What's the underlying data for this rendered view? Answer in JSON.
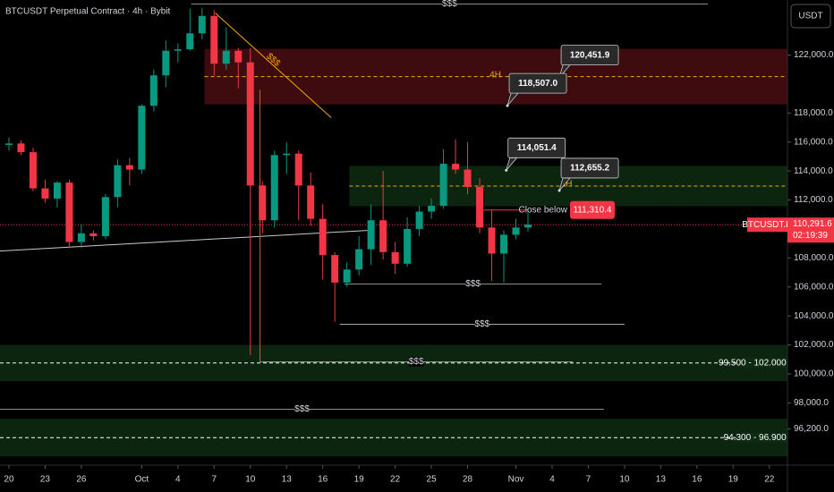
{
  "chart_data": {
    "type": "candlestick",
    "title": "BTCUSDT Perpetual Contract · 4h · Bybit",
    "currency": "USDT",
    "symbol": "BTCUSDT.P",
    "last_price": {
      "value": 110291.6,
      "label": "110,291.6"
    },
    "countdown": "02:19:39",
    "up_color": "#089981",
    "down_color": "#f23645",
    "x": [
      0,
      1,
      2,
      3,
      4,
      5,
      6,
      7,
      8,
      9,
      10,
      11,
      12,
      13,
      14,
      15,
      16,
      17,
      18,
      19,
      20,
      21,
      22,
      23,
      24,
      25,
      26,
      27,
      28,
      29,
      30,
      31,
      32,
      33,
      34,
      35,
      36,
      37,
      38,
      39,
      40,
      41,
      42,
      43
    ],
    "open": [
      115800,
      115900,
      115300,
      112800,
      112100,
      113200,
      109100,
      109700,
      109500,
      112200,
      114400,
      114100,
      118500,
      120600,
      122300,
      122400,
      123500,
      124700,
      121400,
      122300,
      121500,
      113000,
      110600,
      115100,
      115200,
      113000,
      110700,
      108200,
      106300,
      107200,
      108600,
      110600,
      108400,
      107600,
      110000,
      111200,
      111600,
      114500,
      114100,
      112900,
      110100,
      108300,
      109600,
      110100
    ],
    "high": [
      116300,
      116100,
      115600,
      113400,
      113300,
      113400,
      110300,
      109900,
      112400,
      114800,
      114900,
      118600,
      121000,
      123000,
      122800,
      125200,
      125250,
      125100,
      123900,
      122500,
      122500,
      113300,
      115400,
      116000,
      115400,
      113900,
      111700,
      108400,
      107700,
      109500,
      111700,
      114000,
      109100,
      110800,
      111600,
      112100,
      115500,
      116200,
      116000,
      113500,
      111300,
      109900,
      110700,
      111200
    ],
    "low": [
      115400,
      115100,
      112600,
      111800,
      111500,
      108700,
      108700,
      109200,
      109300,
      111500,
      113000,
      113800,
      118100,
      119800,
      121500,
      122300,
      123100,
      120600,
      121000,
      119700,
      101300,
      109700,
      110100,
      113800,
      110600,
      110200,
      106500,
      103600,
      106000,
      106800,
      107500,
      107900,
      106900,
      107400,
      109500,
      110700,
      111400,
      113800,
      112400,
      109700,
      106400,
      106300,
      109300,
      109800
    ],
    "close": [
      115900,
      115300,
      112800,
      112100,
      113200,
      109100,
      109700,
      109500,
      112200,
      114400,
      114100,
      118500,
      120600,
      122300,
      122400,
      123500,
      124700,
      121400,
      122300,
      121500,
      113000,
      110600,
      115100,
      115200,
      113000,
      110700,
      108200,
      106300,
      107200,
      108600,
      110600,
      108400,
      107600,
      110000,
      111200,
      111600,
      114500,
      114100,
      112900,
      110100,
      108300,
      109600,
      110100,
      110300
    ],
    "xlim": [
      -0.74,
      64.5
    ],
    "xticks": [
      {
        "value": 0,
        "label": "20"
      },
      {
        "value": 3,
        "label": "23"
      },
      {
        "value": 6,
        "label": "26"
      },
      {
        "value": 11,
        "label": "Oct"
      },
      {
        "value": 14,
        "label": "4"
      },
      {
        "value": 17,
        "label": "7"
      },
      {
        "value": 20,
        "label": "10"
      },
      {
        "value": 23,
        "label": "13"
      },
      {
        "value": 26,
        "label": "16"
      },
      {
        "value": 29,
        "label": "19"
      },
      {
        "value": 32,
        "label": "22"
      },
      {
        "value": 35,
        "label": "25"
      },
      {
        "value": 38,
        "label": "28"
      },
      {
        "value": 42,
        "label": "Nov"
      },
      {
        "value": 45,
        "label": "4"
      },
      {
        "value": 48,
        "label": "7"
      },
      {
        "value": 51,
        "label": "10"
      },
      {
        "value": 54,
        "label": "13"
      },
      {
        "value": 57,
        "label": "16"
      },
      {
        "value": 60,
        "label": "19"
      },
      {
        "value": 63,
        "label": "22"
      }
    ],
    "ylim": [
      93700,
      125800
    ],
    "yticks": [
      {
        "value": 122000,
        "label": "122,000.0"
      },
      {
        "value": 118000,
        "label": "118,000.0"
      },
      {
        "value": 116000,
        "label": "116,000.0"
      },
      {
        "value": 114000,
        "label": "114,000.0"
      },
      {
        "value": 112000,
        "label": "112,000.0"
      },
      {
        "value": 108000,
        "label": "108,000.0"
      },
      {
        "value": 106000,
        "label": "106,000.0"
      },
      {
        "value": 104000,
        "label": "104,000.0"
      },
      {
        "value": 102000,
        "label": "102,000.0"
      },
      {
        "value": 100000,
        "label": "100,000.0"
      },
      {
        "value": 98000,
        "label": "98,000.0"
      },
      {
        "value": 96200,
        "label": "96,200.0"
      }
    ],
    "zones": [
      {
        "low": 118600,
        "high": 122430,
        "from": 16.2,
        "color": "#b3202a",
        "line_color": "#f7a600",
        "label": "4H",
        "label_at": 40.3
      },
      {
        "low": 111570,
        "high": 114350,
        "from": 28.2,
        "color": "#1f6b2a",
        "line_color": "#f7a600",
        "label": "4H",
        "label_at": 46.2
      },
      {
        "low": 99500,
        "high": 102000,
        "from": -0.74,
        "color": "#1f6b2a",
        "line_color": "#ffffff",
        "label": "99.500 - 102.000",
        "label_at": 64.4
      },
      {
        "low": 94300,
        "high": 96900,
        "from": -0.74,
        "color": "#1f6b2a",
        "line_color": "#ffffff",
        "label": "94.300 - 96.900",
        "label_at": 64.4
      }
    ],
    "levels": [
      {
        "value": 125520,
        "from": 15.1,
        "to": 57.9,
        "label": "$$$"
      },
      {
        "value": 106200,
        "from": 27.8,
        "to": 49.1,
        "label": "$$$"
      },
      {
        "value": 103420,
        "from": 27.4,
        "to": 51.0,
        "label": "$$$"
      },
      {
        "value": 100830,
        "from": 20.8,
        "to": 46.7,
        "label": "$$$"
      },
      {
        "value": 97560,
        "from": -0.74,
        "to": 49.3,
        "label": "$$$"
      }
    ],
    "trendlines": [
      {
        "points": [
          [
            17.1,
            124900
          ],
          [
            26.7,
            117680
          ]
        ],
        "color": "#f7a600",
        "label": "$$$"
      },
      {
        "points": [
          [
            -0.74,
            108480
          ],
          [
            29.7,
            109900
          ]
        ],
        "color": "#cccccc"
      },
      {
        "points": [
          [
            20.8,
            119600
          ],
          [
            20.8,
            100830
          ]
        ],
        "color": "#c0603a"
      }
    ],
    "callouts": [
      {
        "value": 120451.9,
        "label": "120,451.9",
        "x": 45.6
      },
      {
        "value": 118507.0,
        "label": "118,507.0",
        "x": 41.3
      },
      {
        "value": 114051.4,
        "label": "114,051.4",
        "x": 41.2
      },
      {
        "value": 112655.2,
        "label": "112,655.2",
        "x": 45.6
      }
    ],
    "close_below": {
      "text": "Close below",
      "value": 111310.4,
      "label": "111,310.4",
      "from": 39.3,
      "to": 43.0
    }
  }
}
